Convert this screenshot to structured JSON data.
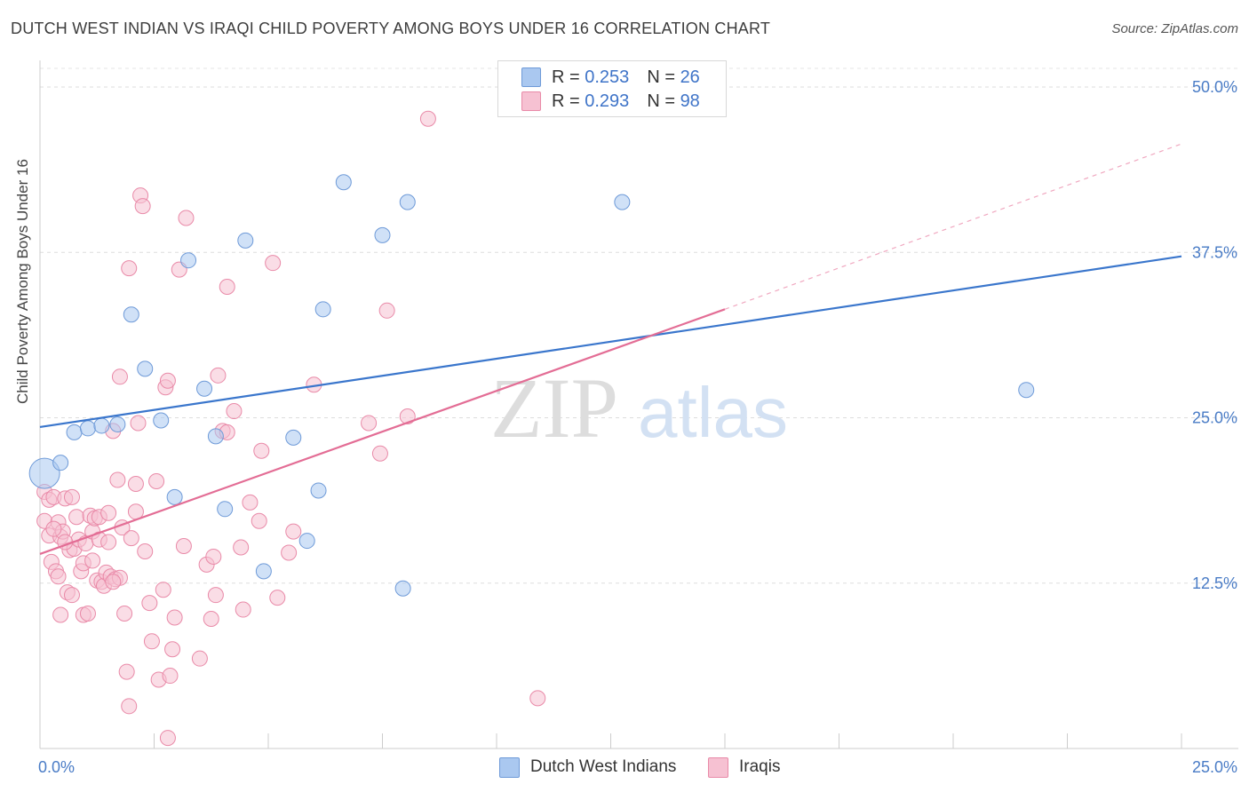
{
  "header": {
    "title": "DUTCH WEST INDIAN VS IRAQI CHILD POVERTY AMONG BOYS UNDER 16 CORRELATION CHART",
    "source": "Source: ZipAtlas.com"
  },
  "legend": {
    "r_label": "R =",
    "n_label": "N =",
    "rows": [
      {
        "r": "0.253",
        "n": "26",
        "color": "#aac8f0",
        "border": "#6e9ad8"
      },
      {
        "r": "0.293",
        "n": "98",
        "color": "#f6c1d2",
        "border": "#e98aa8"
      }
    ]
  },
  "bottom_legend": [
    "Dutch West Indians",
    "Iraqis"
  ],
  "watermark": {
    "zip": "ZIP",
    "atlas": "atlas"
  },
  "chart_data": {
    "type": "scatter",
    "title": "DUTCH WEST INDIAN VS IRAQI CHILD POVERTY AMONG BOYS UNDER 16 CORRELATION CHART",
    "xlabel": "",
    "ylabel": "Child Poverty Among Boys Under 16",
    "xlim": [
      0,
      25
    ],
    "ylim": [
      0,
      50
    ],
    "x_ticks": [
      {
        "v": 0,
        "label": "0.0%"
      },
      {
        "v": 25,
        "label": "25.0%"
      }
    ],
    "y_ticks": [
      {
        "v": 12.5,
        "label": "12.5%"
      },
      {
        "v": 25,
        "label": "25.0%"
      },
      {
        "v": 37.5,
        "label": "37.5%"
      },
      {
        "v": 50,
        "label": "50.0%"
      }
    ],
    "grid": true,
    "legend_position": "top-center",
    "series": [
      {
        "name": "Dutch West Indians",
        "color": "#aac8f0",
        "stroke": "#6e9ad8",
        "line_color": "#3a76cc",
        "points": [
          [
            0.1,
            20.8
          ],
          [
            0.45,
            21.6
          ],
          [
            0.75,
            23.9
          ],
          [
            1.05,
            24.2
          ],
          [
            1.35,
            24.4
          ],
          [
            1.7,
            24.5
          ],
          [
            2.0,
            32.8
          ],
          [
            2.3,
            28.7
          ],
          [
            2.65,
            24.8
          ],
          [
            2.95,
            19.0
          ],
          [
            3.25,
            36.9
          ],
          [
            3.6,
            27.2
          ],
          [
            3.85,
            23.6
          ],
          [
            4.05,
            18.1
          ],
          [
            4.5,
            38.4
          ],
          [
            4.9,
            13.4
          ],
          [
            5.55,
            23.5
          ],
          [
            5.85,
            15.7
          ],
          [
            6.1,
            19.5
          ],
          [
            6.2,
            33.2
          ],
          [
            6.65,
            42.8
          ],
          [
            7.5,
            38.8
          ],
          [
            7.95,
            12.1
          ],
          [
            8.05,
            41.3
          ],
          [
            12.75,
            41.3
          ],
          [
            21.6,
            27.1
          ]
        ],
        "trend": [
          [
            0,
            24.3
          ],
          [
            25,
            37.2
          ]
        ]
      },
      {
        "name": "Iraqis",
        "color": "#f6c1d2",
        "stroke": "#e98aa8",
        "line_color": "#e36d95",
        "points": [
          [
            0.1,
            19.4
          ],
          [
            0.1,
            17.2
          ],
          [
            0.2,
            16.1
          ],
          [
            0.2,
            18.8
          ],
          [
            0.25,
            14.1
          ],
          [
            0.3,
            19.0
          ],
          [
            0.35,
            13.4
          ],
          [
            0.4,
            17.1
          ],
          [
            0.4,
            13.0
          ],
          [
            0.45,
            16.0
          ],
          [
            0.45,
            10.1
          ],
          [
            0.5,
            16.4
          ],
          [
            0.55,
            18.9
          ],
          [
            0.6,
            11.8
          ],
          [
            0.65,
            15.0
          ],
          [
            0.7,
            11.6
          ],
          [
            0.7,
            19.0
          ],
          [
            0.75,
            15.1
          ],
          [
            0.8,
            17.5
          ],
          [
            0.85,
            15.8
          ],
          [
            0.9,
            13.4
          ],
          [
            0.95,
            14.0
          ],
          [
            0.95,
            10.1
          ],
          [
            1.0,
            15.5
          ],
          [
            1.05,
            10.2
          ],
          [
            1.1,
            17.6
          ],
          [
            1.15,
            16.4
          ],
          [
            1.2,
            17.4
          ],
          [
            1.25,
            12.7
          ],
          [
            1.3,
            15.8
          ],
          [
            1.3,
            17.5
          ],
          [
            1.35,
            12.6
          ],
          [
            1.4,
            12.3
          ],
          [
            1.45,
            13.3
          ],
          [
            1.5,
            15.6
          ],
          [
            1.5,
            17.8
          ],
          [
            1.55,
            13.0
          ],
          [
            1.6,
            24.0
          ],
          [
            1.65,
            12.8
          ],
          [
            1.7,
            20.3
          ],
          [
            1.75,
            28.1
          ],
          [
            1.75,
            12.9
          ],
          [
            1.8,
            16.7
          ],
          [
            1.85,
            10.2
          ],
          [
            1.9,
            5.8
          ],
          [
            1.95,
            3.2
          ],
          [
            1.95,
            36.3
          ],
          [
            2.0,
            15.9
          ],
          [
            2.1,
            20.0
          ],
          [
            2.1,
            17.9
          ],
          [
            2.15,
            24.6
          ],
          [
            2.2,
            41.8
          ],
          [
            2.25,
            41.0
          ],
          [
            2.3,
            14.9
          ],
          [
            2.4,
            11.0
          ],
          [
            2.45,
            8.1
          ],
          [
            2.55,
            20.2
          ],
          [
            2.6,
            5.2
          ],
          [
            2.7,
            12.0
          ],
          [
            2.75,
            27.3
          ],
          [
            2.8,
            27.8
          ],
          [
            2.85,
            5.5
          ],
          [
            2.9,
            7.5
          ],
          [
            2.95,
            9.9
          ],
          [
            3.05,
            36.2
          ],
          [
            3.15,
            15.3
          ],
          [
            3.2,
            40.1
          ],
          [
            3.5,
            6.8
          ],
          [
            3.65,
            13.9
          ],
          [
            3.75,
            9.8
          ],
          [
            3.8,
            14.5
          ],
          [
            3.85,
            11.6
          ],
          [
            3.9,
            28.2
          ],
          [
            4.0,
            24.0
          ],
          [
            4.1,
            34.9
          ],
          [
            4.1,
            23.9
          ],
          [
            4.25,
            25.5
          ],
          [
            4.4,
            15.2
          ],
          [
            4.45,
            10.5
          ],
          [
            4.6,
            18.6
          ],
          [
            4.8,
            17.2
          ],
          [
            4.85,
            22.5
          ],
          [
            5.1,
            36.7
          ],
          [
            5.2,
            11.4
          ],
          [
            5.45,
            14.8
          ],
          [
            5.55,
            16.4
          ],
          [
            6.0,
            27.5
          ],
          [
            7.2,
            24.6
          ],
          [
            7.45,
            22.3
          ],
          [
            7.6,
            33.1
          ],
          [
            8.05,
            25.1
          ],
          [
            8.5,
            47.6
          ],
          [
            10.9,
            3.8
          ],
          [
            2.8,
            0.8
          ],
          [
            0.55,
            15.6
          ],
          [
            1.15,
            14.2
          ],
          [
            1.6,
            12.6
          ],
          [
            0.3,
            16.6
          ]
        ],
        "trend": [
          [
            0,
            14.7
          ],
          [
            15,
            33.2
          ]
        ],
        "trend_extension": [
          [
            15,
            33.2
          ],
          [
            25,
            45.7
          ]
        ]
      }
    ]
  }
}
